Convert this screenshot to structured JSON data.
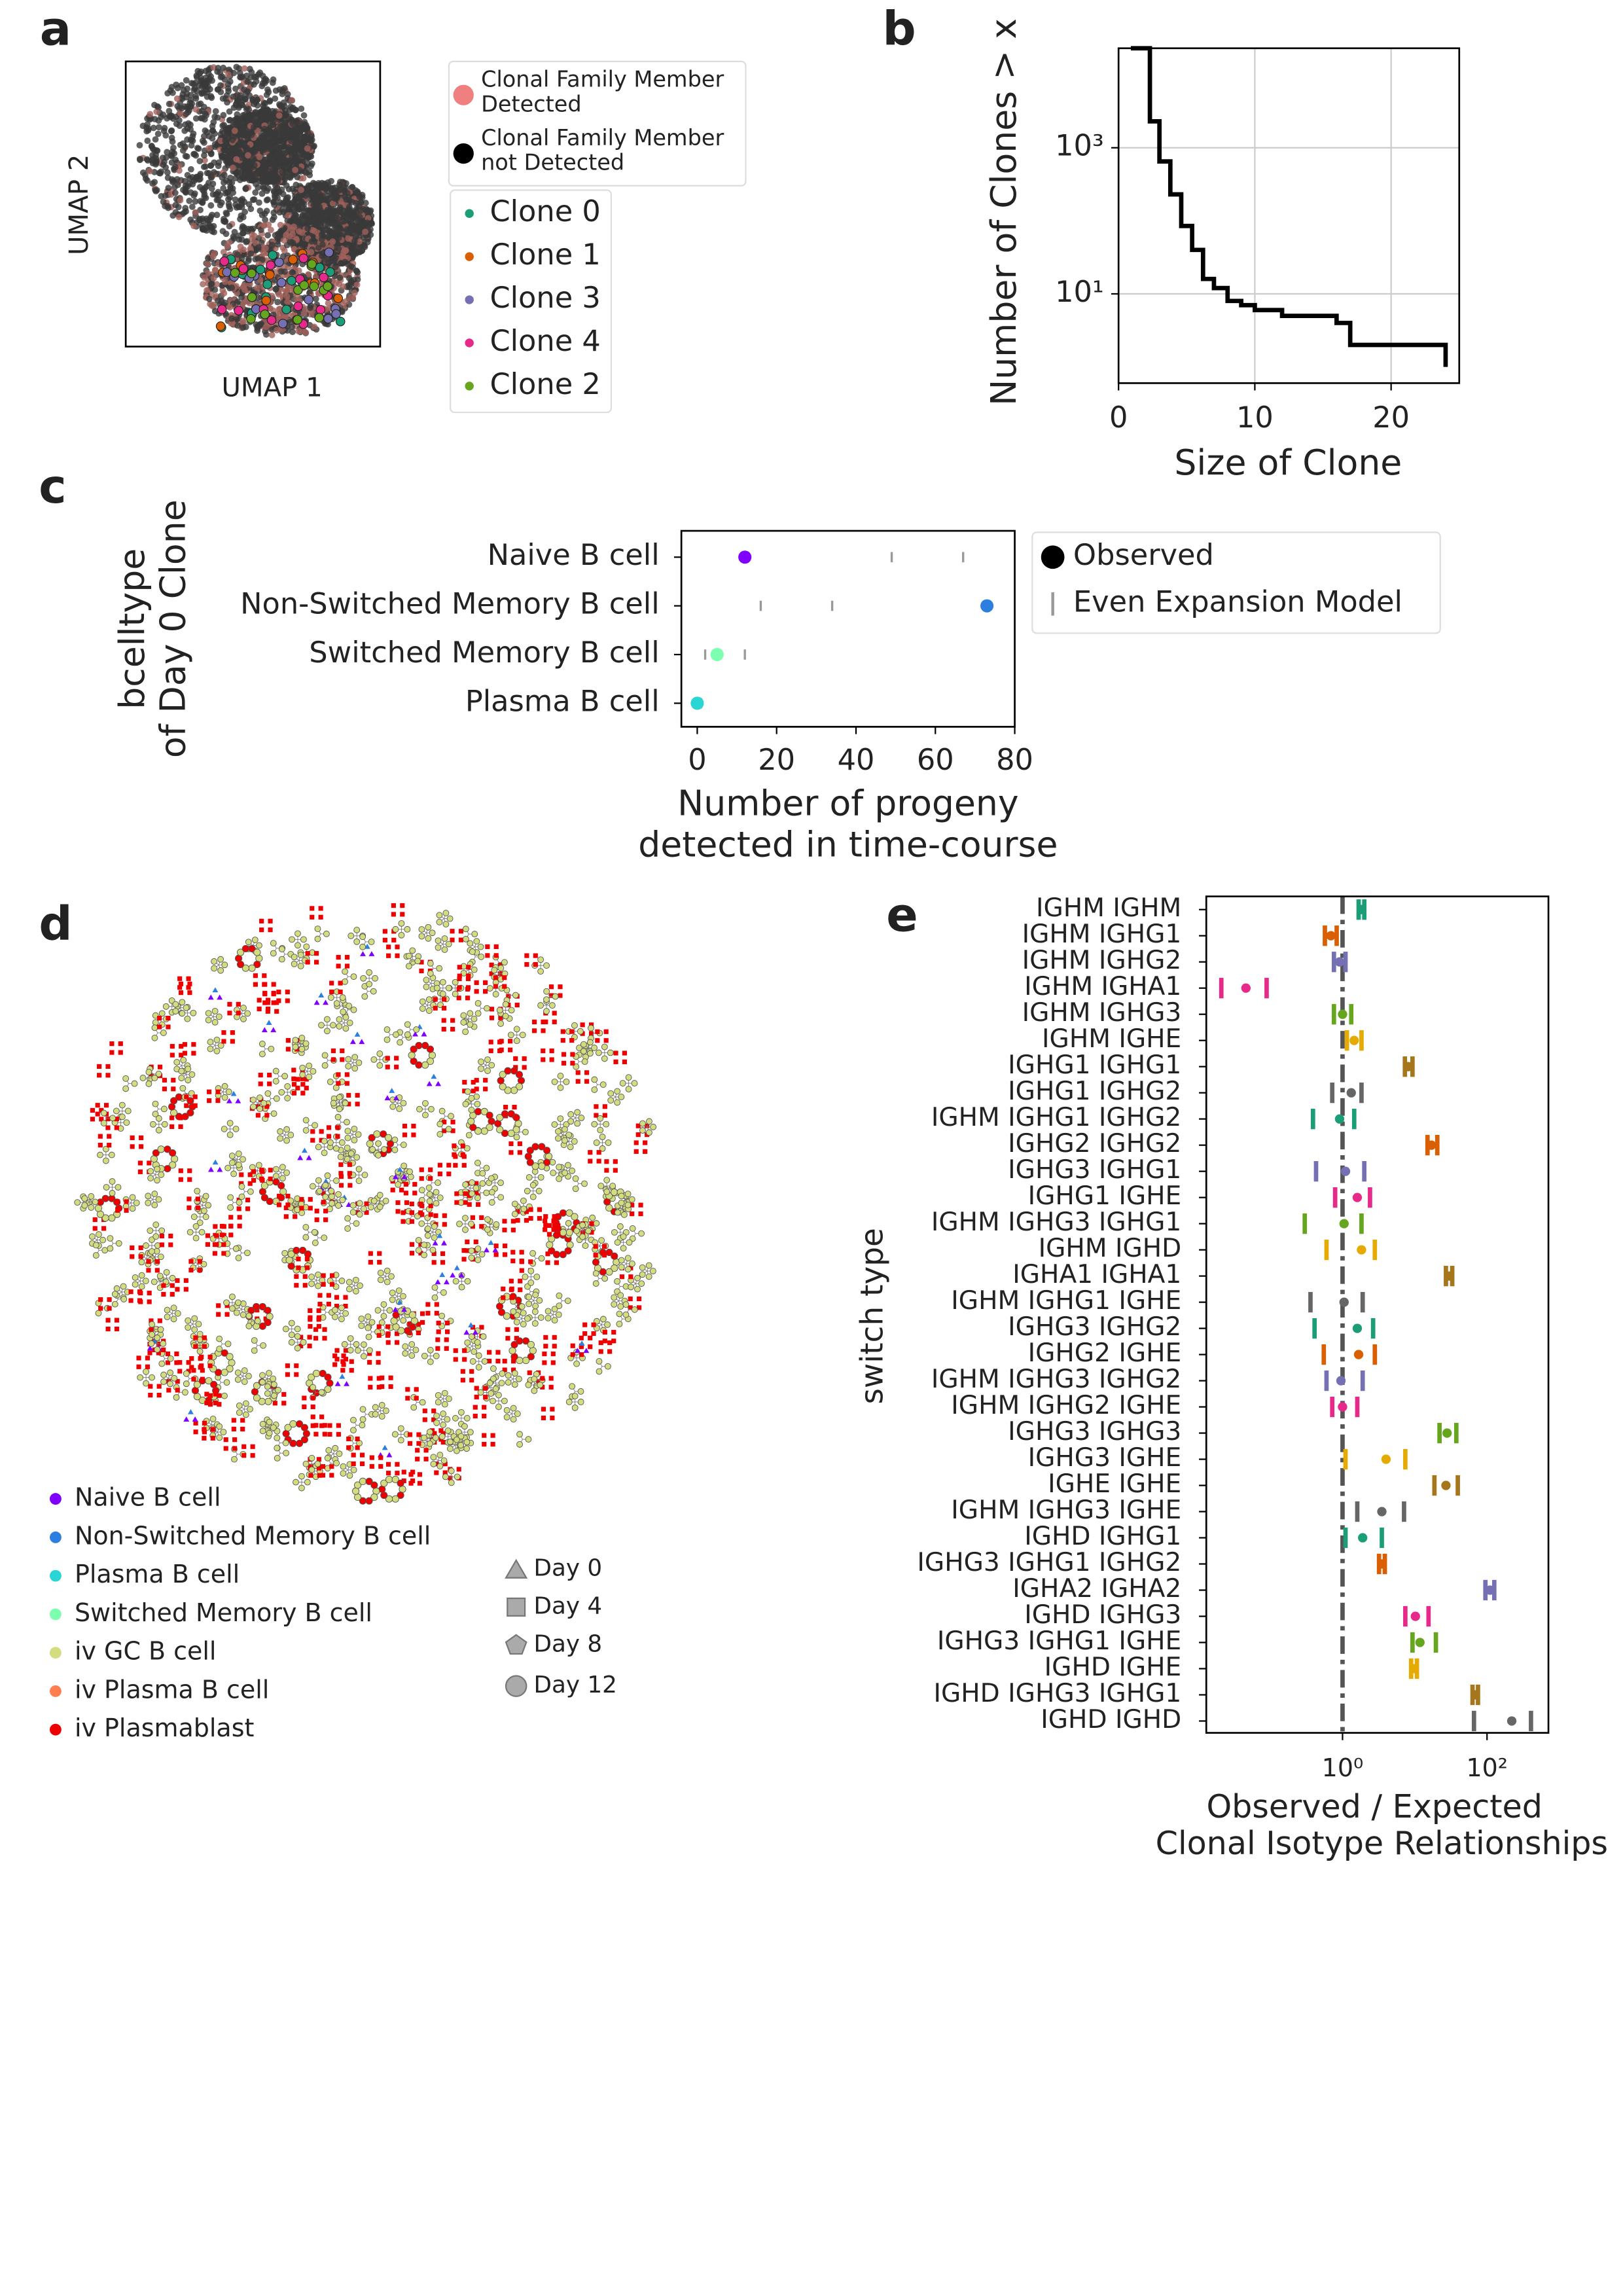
{
  "chart_data": [
    {
      "type": "embedding",
      "label": "a",
      "xlabel": "UMAP 1",
      "ylabel": "UMAP 2",
      "member_legend": [
        {
          "name": [
            "Clonal Family Member",
            " Detected"
          ],
          "color": "#f08080"
        },
        {
          "name": [
            "Clonal Family Member",
            " not Detected"
          ],
          "color": "#000000"
        }
      ],
      "series": [
        {
          "name": "Clone 0",
          "color": "#1b9e77"
        },
        {
          "name": "Clone 1",
          "color": "#d95f02"
        },
        {
          "name": "Clone 3",
          "color": "#7570b3"
        },
        {
          "name": "Clone 4",
          "color": "#e7298a"
        },
        {
          "name": "Clone 2",
          "color": "#66a61e"
        }
      ]
    },
    {
      "type": "step",
      "label": "b",
      "xlabel": "Size of Clone",
      "ylabel": "Number of Clones > x",
      "x": [
        0.9,
        2.3,
        3,
        3.8,
        4.6,
        5.4,
        6.2,
        7,
        8,
        9,
        10,
        12,
        16,
        17,
        24
      ],
      "values": [
        23000,
        2300,
        650,
        230,
        85,
        40,
        16,
        12,
        8,
        7,
        6,
        5,
        4,
        2,
        1
      ],
      "color": "#000000",
      "xlim": [
        0,
        25
      ],
      "xticks": [
        0,
        10,
        20
      ],
      "ylim": [
        0.6,
        23000
      ],
      "log_y": true,
      "yticks": [
        {
          "value": 10,
          "label": "10¹"
        },
        {
          "value": 1000,
          "label": "10³"
        }
      ],
      "grid": true
    },
    {
      "type": "dot",
      "label": "c",
      "xlabel": [
        "Number of progeny",
        "detected in time-course"
      ],
      "ylabel": [
        "bcelltype",
        "of Day 0 Clone"
      ],
      "categories": [
        "Naive B cell",
        "Non-Switched Memory B cell",
        "Switched Memory B cell",
        "Plasma B cell"
      ],
      "series": [
        {
          "name": "Observed",
          "values": [
            12,
            73,
            5,
            0
          ],
          "colors": [
            "#8000ff",
            "#2c7fe0",
            "#7dffb0",
            "#2ad5d5"
          ]
        },
        {
          "name": "Even Expansion Model",
          "values": [
            [
              49,
              67
            ],
            [
              16,
              34
            ],
            [
              2,
              12
            ],
            [
              0,
              1
            ]
          ],
          "color": "#999999"
        }
      ],
      "xlim": [
        -4,
        80
      ],
      "xticks": [
        0,
        20,
        40,
        60,
        80
      ]
    },
    {
      "type": "network",
      "label": "d",
      "legend": [
        {
          "name": "Naive B cell",
          "color": "#7f00ff"
        },
        {
          "name": "Non-Switched Memory B cell",
          "color": "#2c7fe0"
        },
        {
          "name": "Plasma B cell",
          "color": "#2ad5d5"
        },
        {
          "name": "Switched Memory B cell",
          "color": "#7dffb0"
        },
        {
          "name": "iv GC B cell",
          "color": "#d4dc80"
        },
        {
          "name": "iv Plasma B cell",
          "color": "#ff7f50"
        },
        {
          "name": "iv Plasmablast",
          "color": "#ee0000"
        }
      ],
      "days": [
        "Day 0",
        "Day 4",
        "Day 8",
        "Day 12"
      ]
    },
    {
      "type": "interval",
      "label": "e",
      "xlabel": [
        "Observed / Expected",
        "Clonal Isotype Relationships"
      ],
      "ylabel": "switch type",
      "categories": [
        "IGHM IGHM",
        "IGHM IGHG1",
        "IGHM IGHG2",
        "IGHM IGHA1",
        "IGHM IGHG3",
        "IGHM IGHE",
        "IGHG1 IGHG1",
        "IGHG1 IGHG2",
        "IGHM IGHG1 IGHG2",
        "IGHG2 IGHG2",
        "IGHG3 IGHG1",
        "IGHG1 IGHE",
        "IGHM IGHG3 IGHG1",
        "IGHM IGHD",
        "IGHA1 IGHA1",
        "IGHM IGHG1 IGHE",
        "IGHG3 IGHG2",
        "IGHG2 IGHE",
        "IGHM IGHG3 IGHG2",
        "IGHM IGHG2 IGHE",
        "IGHG3 IGHG3",
        "IGHG3 IGHE",
        "IGHE IGHE",
        "IGHM IGHG3 IGHE",
        "IGHD IGHG1",
        "IGHG3 IGHG1 IGHG2",
        "IGHA2 IGHA2",
        "IGHD IGHG3",
        "IGHG3 IGHG1 IGHE",
        "IGHD IGHE",
        "IGHD IGHG3 IGHG1",
        "IGHD IGHD"
      ],
      "values": [
        1.83,
        0.69,
        0.91,
        0.046,
        1.0,
        1.45,
        8.1,
        1.32,
        0.91,
        17,
        1.1,
        1.6,
        1.05,
        1.83,
        30,
        1.05,
        1.6,
        1.67,
        0.95,
        1.0,
        28,
        4.0,
        27,
        3.5,
        1.9,
        3.5,
        110,
        10.2,
        11.8,
        9.8,
        69,
        220
      ],
      "ci_low": [
        1.67,
        0.57,
        0.76,
        0.021,
        0.76,
        1.15,
        7.3,
        0.72,
        0.39,
        15,
        0.43,
        0.79,
        0.3,
        0.6,
        27,
        0.36,
        0.41,
        0.55,
        0.6,
        0.72,
        22,
        1.1,
        18.7,
        1.6,
        1.1,
        3.2,
        95,
        7.4,
        9.3,
        8.9,
        63,
        66
      ],
      "ci_high": [
        2.0,
        0.83,
        1.1,
        0.089,
        1.32,
        1.83,
        9.3,
        1.83,
        1.45,
        20.5,
        2.0,
        2.4,
        1.83,
        2.8,
        33,
        1.9,
        2.65,
        2.8,
        1.9,
        1.6,
        37.6,
        7.4,
        39.4,
        7.1,
        3.5,
        3.85,
        126,
        15.5,
        19.6,
        10.7,
        75,
        406
      ],
      "palette": [
        "#1b9e77",
        "#d95f02",
        "#7570b3",
        "#e7298a",
        "#66a61e",
        "#e6ab02",
        "#a6761d",
        "#666666"
      ],
      "reference_line": 1,
      "log_x": true,
      "xlim": [
        0.013,
        708
      ],
      "xticks": [
        {
          "value": 1,
          "label": "10⁰"
        },
        {
          "value": 100,
          "label": "10²"
        }
      ]
    }
  ]
}
